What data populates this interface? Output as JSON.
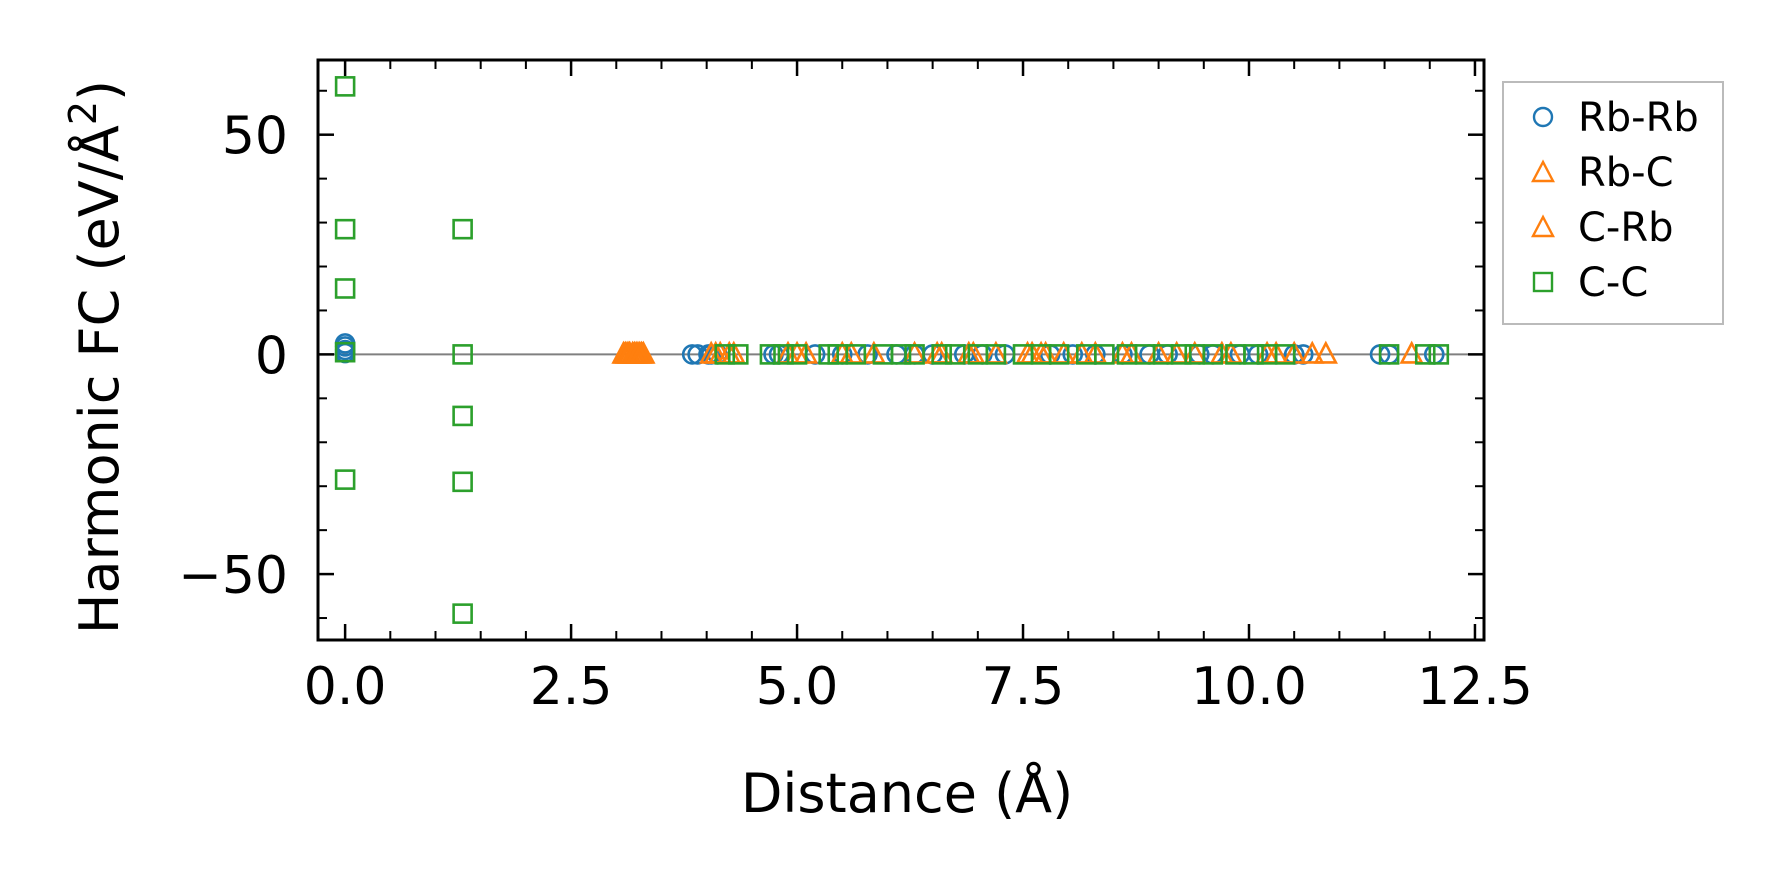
{
  "chart_data": {
    "type": "scatter",
    "title": "",
    "xlabel": "Distance (Å)",
    "ylabel": "Harmonic FC (eV/Å²)",
    "ylabel_parts": {
      "main": "Harmonic FC (eV/Å",
      "sup": "2",
      "tail": ")"
    },
    "xlim": [
      -0.3,
      12.6
    ],
    "ylim": [
      -65,
      67
    ],
    "x_ticks": [
      0.0,
      2.5,
      5.0,
      7.5,
      10.0,
      12.5
    ],
    "x_tick_labels": [
      "0.0",
      "2.5",
      "5.0",
      "7.5",
      "10.0",
      "12.5"
    ],
    "x_minor_step": 0.5,
    "y_ticks": [
      -50,
      0,
      50
    ],
    "y_tick_labels": [
      "−50",
      "0",
      "50"
    ],
    "y_minor_step": 10,
    "zero_line": true,
    "legend_position": "outside-right-top",
    "series": [
      {
        "name": "Rb-Rb",
        "marker": "circle",
        "color": "#1f77b4",
        "x": [
          0.0,
          0.0,
          0.0,
          0.0,
          3.84,
          3.9,
          4.02,
          4.05,
          4.12,
          4.74,
          4.8,
          5.2,
          5.5,
          5.78,
          6.1,
          6.3,
          6.5,
          6.85,
          7.05,
          7.3,
          7.8,
          8.05,
          8.3,
          8.6,
          8.9,
          9.1,
          9.45,
          9.6,
          9.9,
          10.1,
          10.5,
          10.6,
          11.45,
          11.55,
          12.05
        ],
        "y": [
          2.5,
          1.8,
          1.0,
          0.3,
          0,
          0,
          0,
          0,
          0,
          0,
          0,
          0,
          0,
          0,
          0,
          0,
          0,
          0,
          0,
          0,
          0,
          0,
          0,
          0,
          0,
          0,
          0,
          0,
          0,
          0,
          0,
          0,
          0,
          0,
          0
        ]
      },
      {
        "name": "Rb-C",
        "marker": "triangle",
        "color": "#ff7f0e",
        "x": [
          3.08,
          3.12,
          3.15,
          3.18,
          3.22,
          3.26,
          3.3,
          4.05,
          4.1,
          4.3,
          4.9,
          5.1,
          5.5,
          5.85,
          6.3,
          6.6,
          6.9,
          7.2,
          7.6,
          7.7,
          7.95,
          8.3,
          8.6,
          9.0,
          9.4,
          9.8,
          10.2,
          10.5,
          10.85,
          11.8
        ],
        "y": [
          0,
          0,
          0,
          0,
          0,
          0,
          0,
          0,
          0,
          0,
          0,
          0,
          0,
          0,
          0,
          0,
          0,
          0,
          0,
          0,
          0,
          0,
          0,
          0,
          0,
          0,
          0,
          0,
          0,
          0
        ]
      },
      {
        "name": "C-Rb",
        "marker": "triangle",
        "color": "#ff7f0e",
        "x": [
          3.1,
          3.14,
          3.2,
          3.24,
          3.28,
          4.15,
          4.25,
          5.0,
          5.6,
          6.55,
          6.95,
          7.55,
          7.75,
          8.15,
          8.7,
          9.2,
          9.7,
          10.3,
          10.7
        ],
        "y": [
          0,
          0,
          0,
          0,
          0,
          0,
          0,
          0,
          0,
          0,
          0,
          0,
          0,
          0,
          0,
          0,
          0,
          0,
          0
        ]
      },
      {
        "name": "C-C",
        "marker": "square",
        "color": "#2ca02c",
        "x": [
          0.0,
          0.0,
          0.0,
          0.0,
          0.0,
          1.3,
          1.3,
          1.3,
          1.3,
          1.3,
          4.2,
          4.35,
          4.7,
          4.85,
          5.0,
          5.35,
          5.45,
          5.65,
          5.95,
          6.15,
          6.3,
          6.6,
          6.75,
          7.0,
          7.2,
          7.5,
          7.7,
          7.9,
          8.2,
          8.4,
          8.65,
          8.85,
          9.05,
          9.25,
          9.4,
          9.6,
          9.85,
          10.05,
          10.2,
          10.4,
          11.55,
          11.95,
          12.1
        ],
        "y": [
          61,
          28.5,
          15,
          -28.5,
          0.5,
          28.5,
          0,
          -14,
          -29,
          -59,
          0,
          0,
          0,
          0,
          0,
          0,
          0,
          0,
          0,
          0,
          0,
          0,
          0,
          0,
          0,
          0,
          0,
          0,
          0,
          0,
          0,
          0,
          0,
          0,
          0,
          0,
          0,
          0,
          0,
          0,
          0,
          0,
          0
        ]
      }
    ]
  }
}
